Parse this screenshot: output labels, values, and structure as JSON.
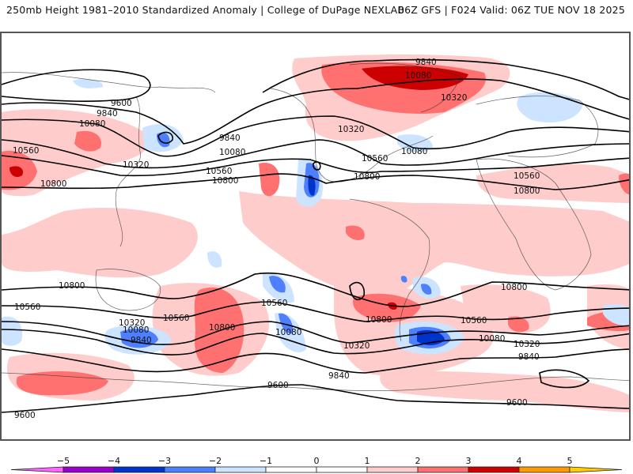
{
  "header": {
    "title_left": "250mb Height 1981–2010 Standardized Anomaly | College of DuPage NEXLAB",
    "title_right": "06Z GFS | F024 Valid: 06Z TUE NOV 18 2025"
  },
  "map": {
    "field": "250mb geopotential height (contours, m)",
    "shading": "standardized anomaly",
    "contour_labels": [
      {
        "id": "c9600-nw",
        "text": "9600"
      },
      {
        "id": "c9840-nw",
        "text": "9840"
      },
      {
        "id": "c10080-nw",
        "text": "10080"
      },
      {
        "id": "c10560-w",
        "text": "10560"
      },
      {
        "id": "c10320-asia",
        "text": "10320"
      },
      {
        "id": "c10800-asia",
        "text": "10800"
      },
      {
        "id": "c9840-pac",
        "text": "9840"
      },
      {
        "id": "c10080-pac",
        "text": "10080"
      },
      {
        "id": "c10560-pac",
        "text": "10560"
      },
      {
        "id": "c10800-pac",
        "text": "10800"
      },
      {
        "id": "c9840-greenland",
        "text": "9840"
      },
      {
        "id": "c10080-greenland",
        "text": "10080"
      },
      {
        "id": "c10320-greenland",
        "text": "10320"
      },
      {
        "id": "c10320-canada",
        "text": "10320"
      },
      {
        "id": "c10080-ne-us",
        "text": "10080"
      },
      {
        "id": "c10560-us",
        "text": "10560"
      },
      {
        "id": "c10800-us",
        "text": "10800"
      },
      {
        "id": "c10560-europe",
        "text": "10560"
      },
      {
        "id": "c10800-africa",
        "text": "10800"
      },
      {
        "id": "c10800-sw",
        "text": "10800"
      },
      {
        "id": "c10560-sw",
        "text": "10560"
      },
      {
        "id": "c10320-sw",
        "text": "10320"
      },
      {
        "id": "c10080-sw",
        "text": "10080"
      },
      {
        "id": "c9840-sw",
        "text": "9840"
      },
      {
        "id": "c10560-aus",
        "text": "10560"
      },
      {
        "id": "c10800-s-pac",
        "text": "10800"
      },
      {
        "id": "c10560-s-pac",
        "text": "10560"
      },
      {
        "id": "c10080-s-pac",
        "text": "10080"
      },
      {
        "id": "c10800-s-atl",
        "text": "10800"
      },
      {
        "id": "c10320-s-atl",
        "text": "10320"
      },
      {
        "id": "c9840-s-atl",
        "text": "9840"
      },
      {
        "id": "c9600-s",
        "text": "9600"
      },
      {
        "id": "c10800-s-io",
        "text": "10800"
      },
      {
        "id": "c10560-s-io",
        "text": "10560"
      },
      {
        "id": "c10080-s-io",
        "text": "10080"
      },
      {
        "id": "c10320-s-io",
        "text": "10320"
      },
      {
        "id": "c9840-s-io",
        "text": "9840"
      },
      {
        "id": "c9600-sw",
        "text": "9600"
      },
      {
        "id": "c9600-se",
        "text": "9600"
      }
    ]
  },
  "colorbar": {
    "ticks": [
      "−5",
      "−4",
      "−3",
      "−2",
      "−1",
      "0",
      "1",
      "2",
      "3",
      "4",
      "5"
    ],
    "colors": {
      "below_-5": "#ff66ff",
      "-5_-4": "#9900cc",
      "-4_-3": "#0033cc",
      "-3_-2": "#4d7fff",
      "-2_-1": "#cce4ff",
      "-1_0": "#ffffff",
      "0_1": "#ffffff",
      "1_2": "#ffcccc",
      "2_3": "#ff7070",
      "3_4": "#cc0000",
      "4_5": "#ff9900",
      "above_5": "#ffcc00"
    }
  }
}
